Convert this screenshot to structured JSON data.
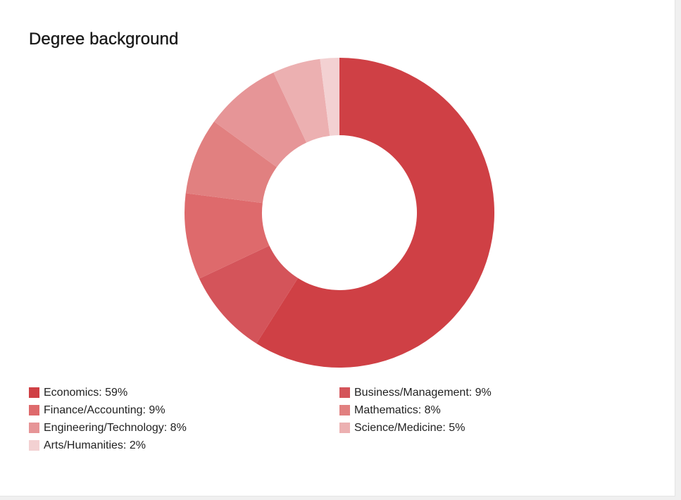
{
  "chart_data": {
    "type": "pie",
    "title": "Degree background",
    "donut": true,
    "categories": [
      "Economics",
      "Business/Management",
      "Finance/Accounting",
      "Mathematics",
      "Engineering/Technology",
      "Science/Medicine",
      "Arts/Humanities"
    ],
    "values": [
      59,
      9,
      9,
      8,
      8,
      5,
      2
    ],
    "unit": "%",
    "colors": [
      "#cf4045",
      "#d4545a",
      "#de6a6c",
      "#e18080",
      "#e69597",
      "#ecb0b1",
      "#f3d1d2"
    ],
    "legend_placement": "bottom"
  }
}
